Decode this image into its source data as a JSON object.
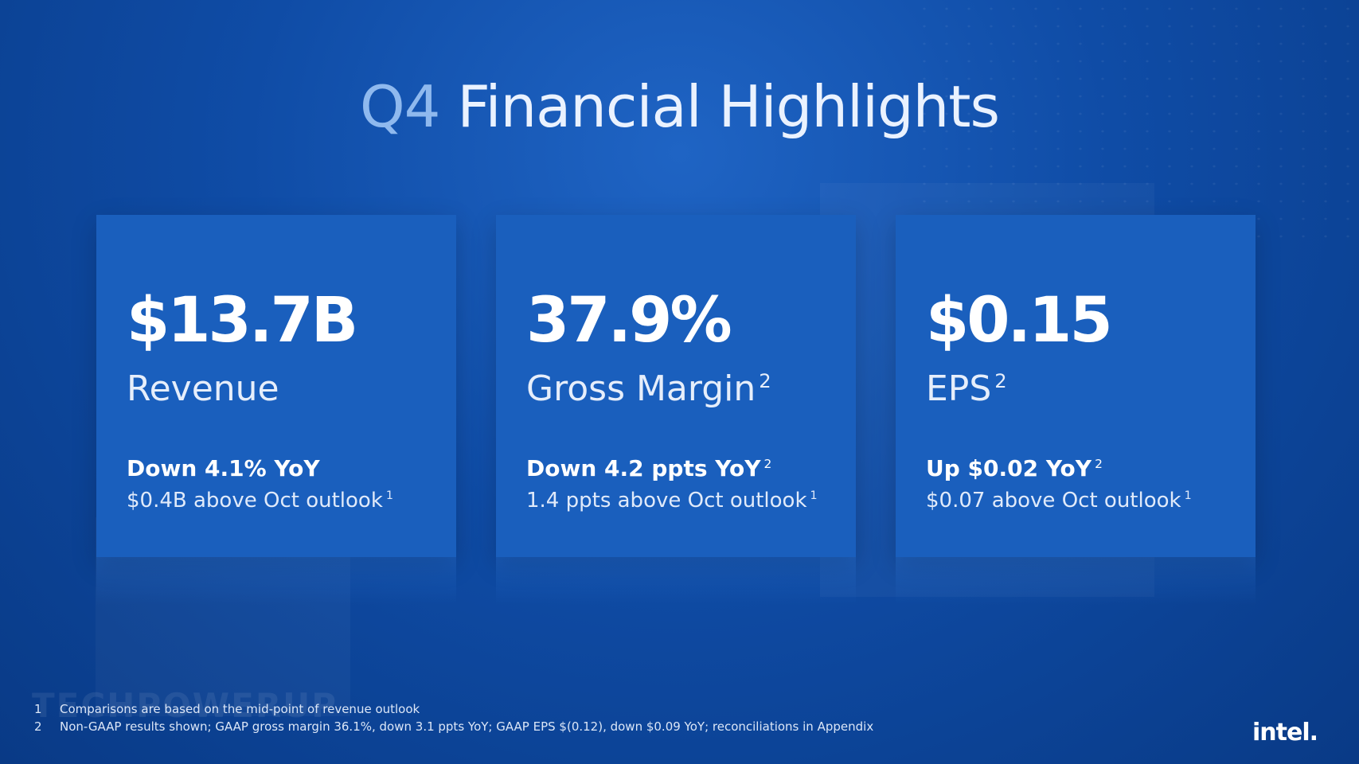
{
  "title": {
    "prefix": "Q4",
    "rest": "Financial Highlights"
  },
  "cards": [
    {
      "value": "$13.7B",
      "label": "Revenue",
      "label_sup": "",
      "change": "Down 4.1% YoY",
      "change_sup": "",
      "outlook": "$0.4B above Oct outlook",
      "outlook_sup": "1"
    },
    {
      "value": "37.9%",
      "label": "Gross Margin",
      "label_sup": "2",
      "change": "Down 4.2 ppts YoY",
      "change_sup": "2",
      "outlook": "1.4 ppts above Oct outlook",
      "outlook_sup": "1"
    },
    {
      "value": "$0.15",
      "label": "EPS",
      "label_sup": "2",
      "change": "Up $0.02 YoY",
      "change_sup": "2",
      "outlook": "$0.07 above Oct outlook",
      "outlook_sup": "1"
    }
  ],
  "footnotes": [
    {
      "num": "1",
      "text": "Comparisons are based on the mid-point of revenue outlook"
    },
    {
      "num": "2",
      "text": "Non-GAAP results shown; GAAP gross margin 36.1%, down 3.1 ppts YoY; GAAP EPS $(0.12), down $0.09 YoY; reconciliations in Appendix"
    }
  ],
  "watermark": "TECHPOWERUP",
  "logo": "intel."
}
